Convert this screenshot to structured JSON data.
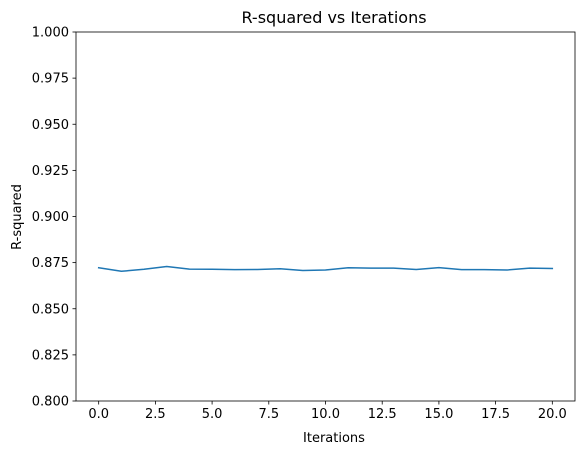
{
  "chart_data": {
    "type": "line",
    "title": "R-squared vs Iterations",
    "xlabel": "Iterations",
    "ylabel": "R-squared",
    "xlim": [
      -1,
      21
    ],
    "ylim": [
      0.8,
      1.0
    ],
    "x_ticks": [
      0.0,
      2.5,
      5.0,
      7.5,
      10.0,
      12.5,
      15.0,
      17.5,
      20.0
    ],
    "x_tick_labels": [
      "0.0",
      "2.5",
      "5.0",
      "7.5",
      "10.0",
      "12.5",
      "15.0",
      "17.5",
      "20.0"
    ],
    "y_ticks": [
      0.8,
      0.825,
      0.85,
      0.875,
      0.9,
      0.925,
      0.95,
      0.975,
      1.0
    ],
    "y_tick_labels": [
      "0.800",
      "0.825",
      "0.850",
      "0.875",
      "0.900",
      "0.925",
      "0.950",
      "0.975",
      "1.000"
    ],
    "grid": false,
    "series": [
      {
        "color": "#1f77b4",
        "x": [
          0,
          1,
          2,
          3,
          4,
          5,
          6,
          7,
          8,
          9,
          10,
          11,
          12,
          13,
          14,
          15,
          16,
          17,
          18,
          19,
          20
        ],
        "values": [
          0.8722,
          0.8703,
          0.8714,
          0.8729,
          0.8715,
          0.8714,
          0.8712,
          0.8713,
          0.8717,
          0.8707,
          0.871,
          0.8722,
          0.872,
          0.872,
          0.8713,
          0.8723,
          0.8712,
          0.8712,
          0.871,
          0.872,
          0.8718
        ]
      }
    ]
  }
}
